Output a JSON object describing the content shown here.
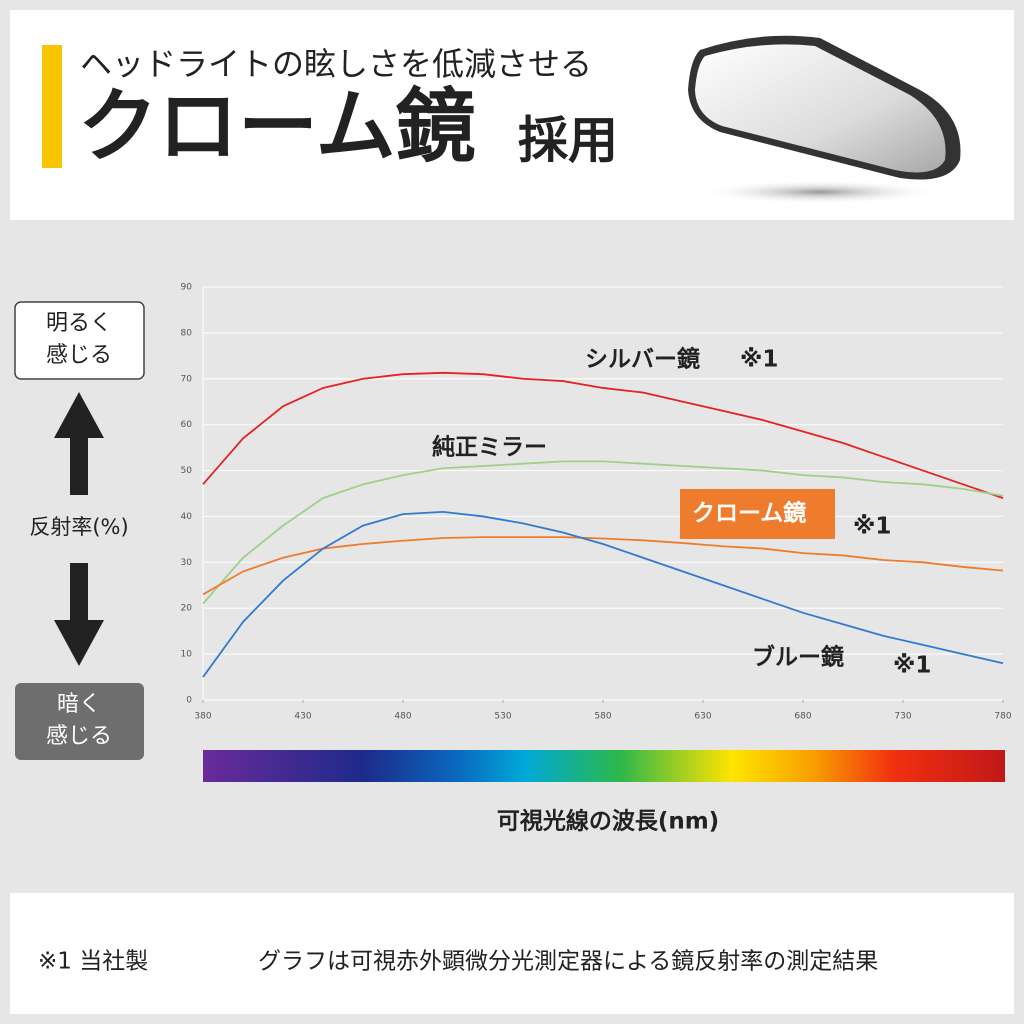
{
  "header": {
    "subtitle": "ヘッドライトの眩しさを低減させる",
    "title": "クローム鏡",
    "title_suffix": "採用"
  },
  "side": {
    "bright": [
      "明るく",
      "感じる"
    ],
    "axis_label": "反射率(%)",
    "dark": [
      "暗く",
      "感じる"
    ]
  },
  "chart_data": {
    "type": "line",
    "x": [
      380,
      400,
      420,
      440,
      460,
      480,
      500,
      520,
      540,
      560,
      580,
      600,
      620,
      640,
      660,
      680,
      700,
      720,
      740,
      760,
      780
    ],
    "xlim": [
      380,
      780
    ],
    "xticks": [
      380,
      430,
      480,
      530,
      580,
      630,
      680,
      730,
      780
    ],
    "ylim": [
      0,
      90
    ],
    "yticks": [
      0,
      10,
      20,
      30,
      40,
      50,
      60,
      70,
      80,
      90
    ],
    "grid": true,
    "x_label": "可視光線の波長(nm)",
    "series": [
      {
        "name": "シルバー鏡",
        "note": "※1",
        "color": "#e52222",
        "values": [
          47,
          57,
          64,
          68,
          70,
          71,
          71.3,
          71,
          70,
          69.5,
          68,
          67,
          65,
          63,
          61,
          58.5,
          56,
          53,
          50,
          47,
          44
        ]
      },
      {
        "name": "純正ミラー",
        "color": "#9fd08a",
        "values": [
          21,
          31,
          38,
          44,
          47,
          49,
          50.5,
          51,
          51.5,
          52,
          52,
          51.5,
          51,
          50.5,
          50,
          49,
          48.5,
          47.5,
          47,
          46,
          44.5
        ]
      },
      {
        "name": "クローム鏡",
        "note": "※1",
        "color": "#ef7b2c",
        "values": [
          23,
          28,
          31,
          33,
          34,
          34.7,
          35.3,
          35.5,
          35.5,
          35.5,
          35.2,
          34.8,
          34.2,
          33.5,
          33,
          32,
          31.5,
          30.5,
          30,
          29,
          28.2
        ]
      },
      {
        "name": "ブルー鏡",
        "note": "※1",
        "color": "#2f7bd0",
        "values": [
          5,
          17,
          26,
          33,
          38,
          40.5,
          41,
          40,
          38.5,
          36.5,
          34,
          31,
          28,
          25,
          22,
          19,
          16.5,
          14,
          12,
          10,
          8
        ]
      }
    ]
  },
  "footer": {
    "note": "※1 当社製",
    "description": "グラフは可視赤外顕微分光測定器による鏡反射率の測定結果"
  }
}
